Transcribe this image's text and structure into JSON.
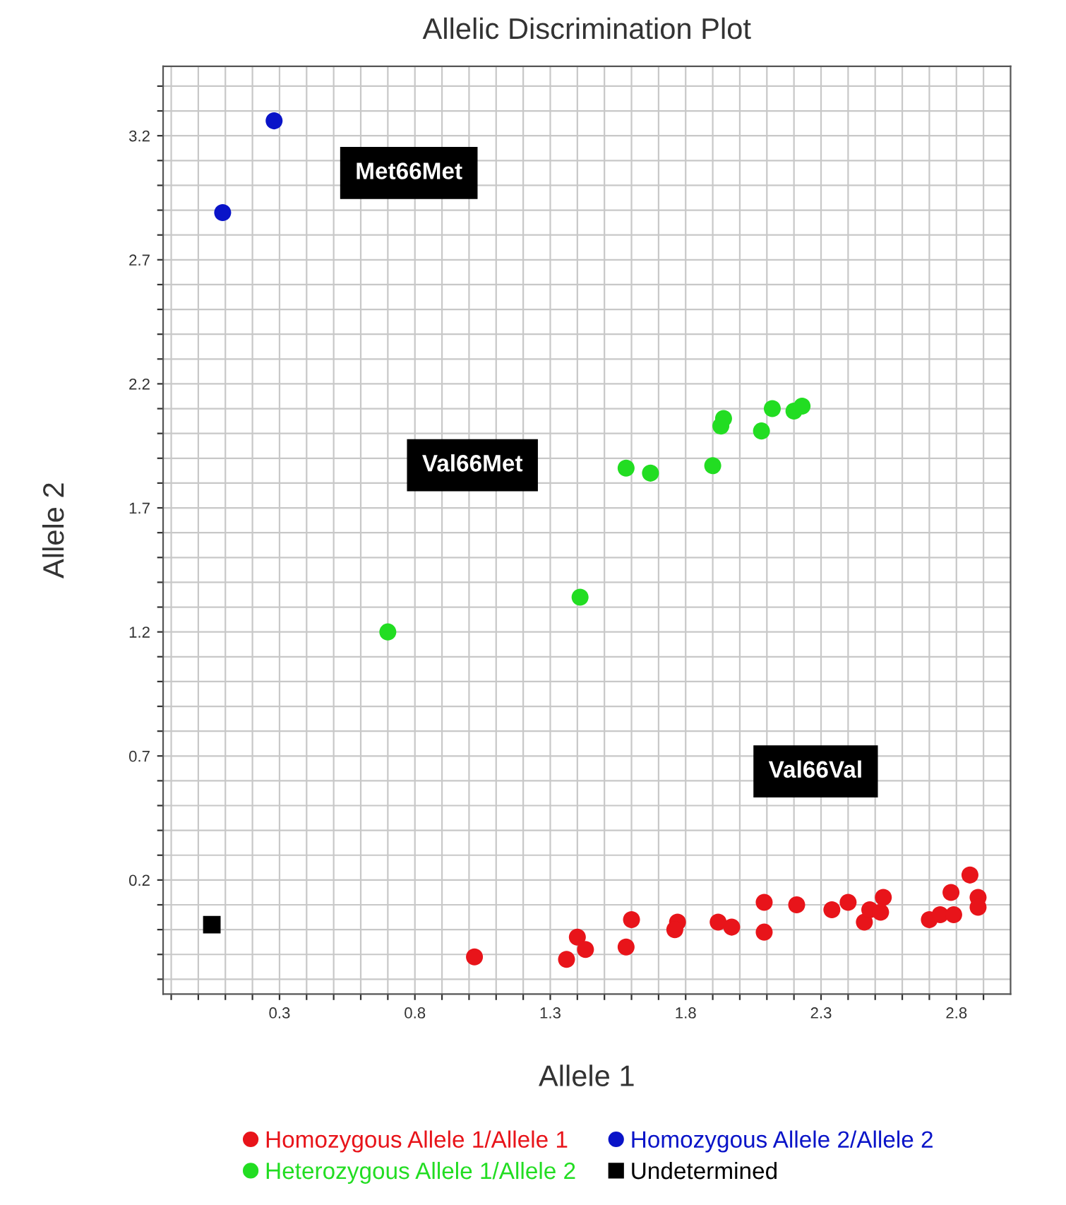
{
  "chart_data": {
    "type": "scatter",
    "title": "Allelic Discrimination Plot",
    "xlabel": "Allele 1",
    "ylabel": "Allele 2",
    "xlim": [
      -0.13,
      3.0
    ],
    "ylim": [
      -0.26,
      3.48
    ],
    "xticks": [
      {
        "value": -0.1,
        "label": null
      },
      {
        "value": 0.0,
        "label": null
      },
      {
        "value": 0.1,
        "label": null
      },
      {
        "value": 0.2,
        "label": null
      },
      0.3,
      {
        "value": 0.4,
        "label": null
      },
      {
        "value": 0.5,
        "label": null
      },
      {
        "value": 0.6,
        "label": null
      },
      {
        "value": 0.7,
        "label": null
      },
      0.8,
      {
        "value": 0.9,
        "label": null
      },
      {
        "value": 1.0,
        "label": null
      },
      {
        "value": 1.1,
        "label": null
      },
      {
        "value": 1.2,
        "label": null
      },
      1.3,
      {
        "value": 1.4,
        "label": null
      },
      {
        "value": 1.5,
        "label": null
      },
      {
        "value": 1.6,
        "label": null
      },
      {
        "value": 1.7,
        "label": null
      },
      1.8,
      {
        "value": 1.9,
        "label": null
      },
      {
        "value": 2.0,
        "label": null
      },
      {
        "value": 2.1,
        "label": null
      },
      {
        "value": 2.2,
        "label": null
      },
      2.3,
      {
        "value": 2.4,
        "label": null
      },
      {
        "value": 2.5,
        "label": null
      },
      {
        "value": 2.6,
        "label": null
      },
      {
        "value": 2.7,
        "label": null
      },
      2.8,
      {
        "value": 2.9,
        "label": null
      }
    ],
    "yticks": [
      {
        "value": -0.2,
        "label": null
      },
      {
        "value": -0.1,
        "label": null
      },
      {
        "value": 0.0,
        "label": null
      },
      {
        "value": 0.1,
        "label": null
      },
      0.2,
      {
        "value": 0.3,
        "label": null
      },
      {
        "value": 0.4,
        "label": null
      },
      {
        "value": 0.5,
        "label": null
      },
      {
        "value": 0.6,
        "label": null
      },
      0.7,
      {
        "value": 0.8,
        "label": null
      },
      {
        "value": 0.9,
        "label": null
      },
      {
        "value": 1.0,
        "label": null
      },
      {
        "value": 1.1,
        "label": null
      },
      1.2,
      {
        "value": 1.3,
        "label": null
      },
      {
        "value": 1.4,
        "label": null
      },
      {
        "value": 1.5,
        "label": null
      },
      {
        "value": 1.6,
        "label": null
      },
      1.7,
      {
        "value": 1.8,
        "label": null
      },
      {
        "value": 1.9,
        "label": null
      },
      {
        "value": 2.0,
        "label": null
      },
      {
        "value": 2.1,
        "label": null
      },
      2.2,
      {
        "value": 2.3,
        "label": null
      },
      {
        "value": 2.4,
        "label": null
      },
      {
        "value": 2.5,
        "label": null
      },
      {
        "value": 2.6,
        "label": null
      },
      2.7,
      {
        "value": 2.8,
        "label": null
      },
      {
        "value": 2.9,
        "label": null
      },
      {
        "value": 3.0,
        "label": null
      },
      {
        "value": 3.1,
        "label": null
      },
      3.2,
      {
        "value": 3.3,
        "label": null
      },
      {
        "value": 3.4,
        "label": null
      }
    ],
    "grid": true,
    "legend": "bottom",
    "marker": "circle",
    "series": [
      {
        "name": "Homozygous Allele 1/Allele 1",
        "color": "#e8141a",
        "x": [
          1.02,
          1.36,
          1.4,
          1.43,
          1.58,
          1.6,
          1.77,
          1.76,
          1.92,
          1.97,
          2.09,
          2.09,
          2.21,
          2.34,
          2.4,
          2.46,
          2.48,
          2.53,
          2.52,
          2.7,
          2.74,
          2.78,
          2.79,
          2.85,
          2.88,
          2.88
        ],
        "values": [
          -0.11,
          -0.12,
          -0.03,
          -0.08,
          -0.07,
          0.04,
          0.03,
          0.0,
          0.03,
          0.01,
          0.11,
          -0.01,
          0.1,
          0.08,
          0.11,
          0.03,
          0.08,
          0.13,
          0.07,
          0.04,
          0.06,
          0.15,
          0.06,
          0.22,
          0.13,
          0.09
        ]
      },
      {
        "name": "Homozygous Allele 2/Allele 2",
        "color": "#0a14c8",
        "x": [
          0.28,
          0.09
        ],
        "values": [
          3.26,
          2.89
        ]
      },
      {
        "name": "Heterozygous Allele 1/Allele 2",
        "color": "#22dd22",
        "x": [
          1.58,
          1.67,
          1.9,
          1.94,
          1.93,
          2.08,
          2.12,
          2.2,
          2.23,
          0.7,
          1.41
        ],
        "values": [
          1.86,
          1.84,
          1.87,
          2.06,
          2.03,
          2.01,
          2.1,
          2.09,
          2.11,
          1.2,
          1.34
        ]
      },
      {
        "name": "Undetermined",
        "color": "#000000",
        "marker": "square",
        "x": [
          0.05
        ],
        "values": [
          0.02
        ]
      }
    ],
    "annotations": [
      "Met66Met",
      "Val66Met",
      "Val66Val"
    ]
  }
}
